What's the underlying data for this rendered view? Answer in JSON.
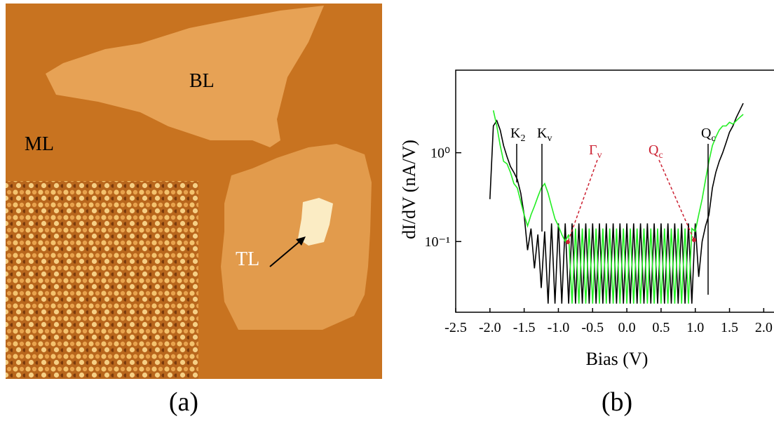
{
  "stm_image": {
    "labels": [
      "BL",
      "ML",
      "TL"
    ],
    "panel_label": "(a)"
  },
  "chart_data": {
    "type": "line",
    "panel_label": "(b)",
    "xlabel": "Bias (V)",
    "ylabel": "dI/dV (nA/V)",
    "xlim": [
      -2.5,
      2.15
    ],
    "xticks": [
      -2.5,
      -2,
      -1.5,
      -1,
      -0.5,
      0,
      0.5,
      1,
      1.5,
      2
    ],
    "xtick_labels": [
      "-2.5",
      "-2.0",
      "-1.5",
      "-1.0",
      "-0.5",
      "0.0",
      "0.5",
      "1.0",
      "1.5",
      "2.0"
    ],
    "ylim": [
      0.016,
      8.5
    ],
    "log_y": true,
    "yticks": [
      {
        "value": 0.1,
        "label": "10⁻¹"
      },
      {
        "value": 1,
        "label": "10⁰"
      }
    ],
    "x": [
      -2,
      -1.95,
      -1.9,
      -1.85,
      -1.8,
      -1.75,
      -1.7,
      -1.65,
      -1.6,
      -1.55,
      -1.5,
      -1.45,
      -1.4,
      -1.35,
      -1.3,
      -1.25,
      -1.2,
      -1.15,
      -1.1,
      -1.05,
      -1,
      -0.95,
      -0.9,
      -0.85,
      -0.8,
      -0.75,
      -0.7,
      -0.65,
      -0.6,
      -0.55,
      -0.5,
      -0.45,
      -0.4,
      -0.35,
      -0.3,
      -0.25,
      -0.2,
      -0.15,
      -0.1,
      -0.05,
      0,
      0.05,
      0.1,
      0.15,
      0.2,
      0.25,
      0.3,
      0.35,
      0.4,
      0.45,
      0.5,
      0.55,
      0.6,
      0.65,
      0.7,
      0.75,
      0.8,
      0.85,
      0.9,
      0.95,
      1,
      1.05,
      1.1,
      1.15,
      1.2,
      1.25,
      1.3,
      1.35,
      1.4,
      1.45,
      1.5,
      1.55,
      1.6,
      1.65,
      1.7
    ],
    "series": [
      {
        "color": "#000000",
        "values": [
          0.3,
          2.0,
          2.3,
          1.8,
          1.2,
          0.9,
          0.7,
          0.6,
          0.5,
          0.35,
          0.2,
          0.08,
          0.14,
          0.05,
          0.12,
          0.03,
          0.13,
          0.02,
          0.16,
          0.02,
          0.16,
          0.02,
          0.16,
          0.02,
          0.16,
          0.02,
          0.16,
          0.02,
          0.16,
          0.02,
          0.16,
          0.02,
          0.16,
          0.02,
          0.16,
          0.02,
          0.16,
          0.02,
          0.16,
          0.02,
          0.16,
          0.02,
          0.16,
          0.02,
          0.16,
          0.02,
          0.16,
          0.02,
          0.16,
          0.02,
          0.16,
          0.02,
          0.16,
          0.02,
          0.16,
          0.02,
          0.16,
          0.02,
          0.16,
          0.02,
          0.16,
          0.04,
          0.1,
          0.15,
          0.2,
          0.4,
          0.6,
          0.8,
          1.0,
          1.3,
          1.7,
          2.0,
          2.5,
          3.0,
          3.6
        ]
      },
      {
        "color": "#22ee22",
        "values": [
          null,
          3.0,
          2.0,
          1.2,
          0.8,
          0.75,
          0.6,
          0.45,
          0.4,
          0.28,
          0.2,
          0.15,
          0.2,
          0.25,
          0.32,
          0.4,
          0.45,
          0.35,
          0.25,
          0.18,
          0.15,
          0.12,
          0.1,
          0.12,
          0.02,
          0.14,
          0.02,
          0.14,
          0.02,
          0.14,
          0.02,
          0.14,
          0.02,
          0.14,
          0.02,
          0.14,
          0.02,
          0.14,
          0.02,
          0.14,
          0.02,
          0.14,
          0.02,
          0.14,
          0.02,
          0.14,
          0.02,
          0.14,
          0.02,
          0.14,
          0.02,
          0.14,
          0.02,
          0.14,
          0.02,
          0.14,
          0.02,
          0.14,
          0.02,
          0.14,
          0.13,
          0.2,
          0.3,
          0.5,
          0.8,
          1.2,
          1.5,
          1.8,
          2.0,
          2.0,
          2.2,
          2.1,
          2.3,
          2.5,
          2.7
        ]
      }
    ],
    "annotations": [
      {
        "text": "K",
        "sub": "2",
        "color": "#000000"
      },
      {
        "text": "K",
        "sub": "v",
        "color": "#000000"
      },
      {
        "text": "Γ",
        "sub": "v",
        "color": "#cc2233"
      },
      {
        "text": "Q",
        "sub": "c",
        "color": "#cc2233"
      },
      {
        "text": "Q",
        "sub": "c",
        "color": "#000000"
      }
    ]
  }
}
